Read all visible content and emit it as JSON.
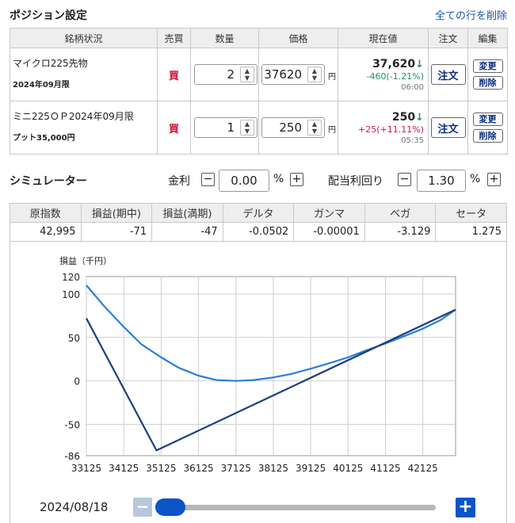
{
  "positions": {
    "title": "ポジション設定",
    "delete_all": "全ての行を削除",
    "columns": [
      "銘柄状況",
      "売買",
      "数量",
      "価格",
      "現在値",
      "注文",
      "編集"
    ],
    "rows": [
      {
        "name": "マイクロ225先物",
        "sub": "2024年09月限",
        "side": "買",
        "qty": "2",
        "price": "37620",
        "yen": "円",
        "current": "37,620",
        "change": "-460(-1.21%)",
        "time": "06:00",
        "order": "注文",
        "edit": "変更",
        "delete": "削除"
      },
      {
        "name": "ミニ225ＯＰ2024年09月限",
        "sub": "プット35,000円",
        "side": "買",
        "qty": "1",
        "price": "250",
        "yen": "円",
        "current": "250",
        "change": "+25(+11.11%)",
        "time": "05:35",
        "order": "注文",
        "edit": "変更",
        "delete": "削除"
      }
    ],
    "arrow": "↓"
  },
  "simulator": {
    "title": "シミュレーター",
    "rate_label": "金利",
    "rate_value": "0.00",
    "div_label": "配当利回り",
    "div_value": "1.30",
    "pct": "%",
    "minus": "−",
    "plus": "+"
  },
  "greeks": {
    "headers": [
      "原指数",
      "損益(期中)",
      "損益(満期)",
      "デルタ",
      "ガンマ",
      "ベガ",
      "セータ"
    ],
    "values": [
      "42,995",
      "-71",
      "-47",
      "-0.0502",
      "-0.00001",
      "-3.129",
      "1.275"
    ]
  },
  "slider": {
    "date": "2024/08/18",
    "minus": "−",
    "plus": "+",
    "position": 0.0
  },
  "colors": {
    "interim_line": "#2a7fd4",
    "expiry_line": "#1c3f80",
    "buy": "#d0143c",
    "down": "#1e9073",
    "up": "#d0143c",
    "accent": "#0b55c8"
  },
  "chart_data": {
    "type": "line",
    "ylabel": "損益（千円）",
    "x_ticks": [
      "33125",
      "34125",
      "35125",
      "36125",
      "37125",
      "38125",
      "39125",
      "40125",
      "41125",
      "42125"
    ],
    "y_ticks": [
      "120",
      "100",
      "50",
      "0",
      "-50",
      "-86"
    ],
    "xlim": [
      33125,
      43000
    ],
    "ylim": [
      -86,
      120
    ],
    "grid": true,
    "series": [
      {
        "x": [
          33125,
          33600,
          34125,
          34600,
          35125,
          35600,
          36125,
          36600,
          37125,
          37600,
          38125,
          38600,
          39125,
          39600,
          40125,
          40600,
          41125,
          41600,
          42125,
          42600,
          43000
        ],
        "y": [
          110,
          86,
          62,
          42,
          27,
          15,
          6,
          1,
          0,
          1,
          4,
          8,
          14,
          20,
          27,
          35,
          43,
          51,
          60,
          70,
          82
        ]
      },
      {
        "x": [
          33125,
          35000,
          43000
        ],
        "y": [
          72,
          -80,
          82
        ]
      }
    ]
  }
}
